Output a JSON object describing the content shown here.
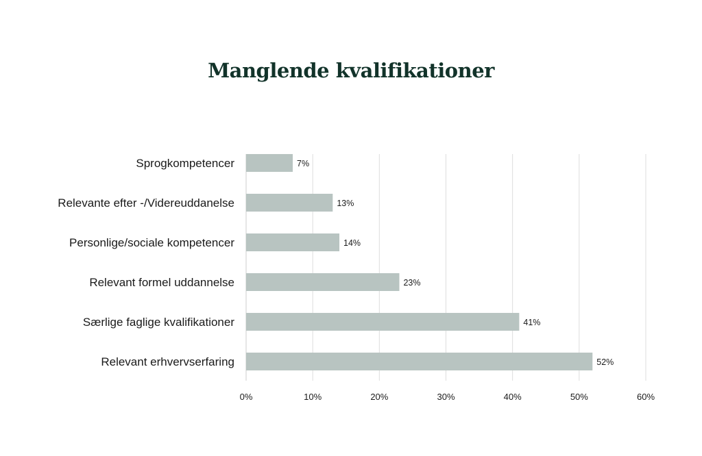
{
  "chart_data": {
    "type": "bar",
    "orientation": "horizontal",
    "title": "Manglende kvalifikationer",
    "categories": [
      "Sprogkompetencer",
      "Relevante efter -/Videreuddanelse",
      "Personlige/sociale kompetencer",
      "Relevant formel uddannelse",
      "Særlige faglige kvalifikationer",
      "Relevant erhvervserfaring"
    ],
    "values": [
      7,
      13,
      14,
      23,
      41,
      52
    ],
    "data_labels": [
      "7%",
      "13%",
      "14%",
      "23%",
      "41%",
      "52%"
    ],
    "xlim": [
      0,
      60
    ],
    "xticks": [
      0,
      10,
      20,
      30,
      40,
      50,
      60
    ],
    "xtick_labels": [
      "0%",
      "10%",
      "20%",
      "30%",
      "40%",
      "50%",
      "60%"
    ],
    "xlabel": "",
    "ylabel": "",
    "grid": "vertical",
    "colors": {
      "bar": "#b8c4c1",
      "title": "#12332a",
      "grid": "#dddddd"
    }
  }
}
